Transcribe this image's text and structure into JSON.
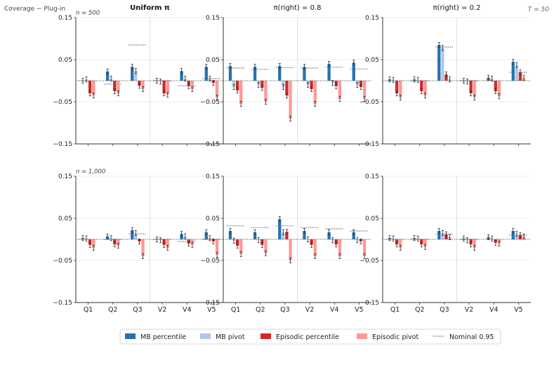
{
  "figure": {
    "corner_label": "Coverage − Plug-in",
    "t_label": "T = 50"
  },
  "legend": {
    "items": [
      {
        "label": "MB percentile",
        "color": "#2572b2",
        "kind": "box"
      },
      {
        "label": "MB pivot",
        "color": "#aec7e8",
        "kind": "box"
      },
      {
        "label": "Episodic percentile",
        "color": "#d62728",
        "kind": "box"
      },
      {
        "label": "Episodic pivot",
        "color": "#ff9896",
        "kind": "box"
      },
      {
        "label": "Nominal 0.95",
        "color": "#333333",
        "kind": "dotted"
      }
    ]
  },
  "chart_data": [
    {
      "type": "bar",
      "row_label": "n = 500",
      "title": "Uniform π",
      "title_bold": true,
      "categories": [
        "Q1",
        "Q2",
        "Q3",
        "V2",
        "V4",
        "V5"
      ],
      "ylim": [
        -0.15,
        0.15
      ],
      "yticks": [
        "0.15",
        "0.05",
        "−0.05",
        "−0.15"
      ],
      "grid": "horizontal",
      "series": [
        {
          "name": "MB percentile",
          "values": [
            0.0,
            0.022,
            0.033,
            0.0,
            0.023,
            0.033
          ]
        },
        {
          "name": "MB pivot",
          "values": [
            0.003,
            0.005,
            0.023,
            -0.002,
            0.005,
            0.005
          ]
        },
        {
          "name": "Episodic percentile",
          "values": [
            -0.03,
            -0.025,
            -0.012,
            -0.03,
            -0.013,
            -0.005
          ]
        },
        {
          "name": "Episodic pivot",
          "values": [
            -0.035,
            -0.03,
            -0.02,
            -0.033,
            -0.02,
            -0.04
          ]
        }
      ],
      "plugin_coverage": [
        0.0,
        -0.008,
        0.085,
        0.0,
        -0.012,
        0.005
      ]
    },
    {
      "type": "bar",
      "row_label": "",
      "title": "π(right) = 0.8",
      "title_bold": false,
      "categories": [
        "Q1",
        "Q2",
        "Q3",
        "V2",
        "V4",
        "V5"
      ],
      "ylim": [
        -0.15,
        0.15
      ],
      "yticks": [
        "0.15",
        "0.05",
        "−0.05",
        "−0.15"
      ],
      "grid": "horizontal",
      "series": [
        {
          "name": "MB percentile",
          "values": [
            0.035,
            0.033,
            0.035,
            0.033,
            0.04,
            0.043
          ]
        },
        {
          "name": "MB pivot",
          "values": [
            -0.015,
            -0.01,
            -0.015,
            -0.01,
            -0.005,
            -0.01
          ]
        },
        {
          "name": "Episodic percentile",
          "values": [
            -0.023,
            -0.017,
            -0.035,
            -0.02,
            -0.013,
            -0.015
          ]
        },
        {
          "name": "Episodic pivot",
          "values": [
            -0.055,
            -0.05,
            -0.09,
            -0.055,
            -0.043,
            -0.043
          ]
        }
      ],
      "plugin_coverage": [
        0.03,
        0.027,
        0.031,
        0.03,
        0.032,
        0.028
      ]
    },
    {
      "type": "bar",
      "row_label": "",
      "title": "π(right) = 0.2",
      "title_bold": false,
      "categories": [
        "Q1",
        "Q2",
        "Q3",
        "V2",
        "V4",
        "V5"
      ],
      "ylim": [
        -0.15,
        0.15
      ],
      "yticks": [
        "0.15",
        "0.05",
        "−0.05",
        "−0.15"
      ],
      "grid": "horizontal",
      "series": [
        {
          "name": "MB percentile",
          "values": [
            0.003,
            0.003,
            0.085,
            0.0,
            0.007,
            0.045
          ]
        },
        {
          "name": "MB pivot",
          "values": [
            0.002,
            0.002,
            0.078,
            -0.002,
            0.005,
            0.037
          ]
        },
        {
          "name": "Episodic percentile",
          "values": [
            -0.03,
            -0.025,
            0.015,
            -0.03,
            -0.025,
            0.02
          ]
        },
        {
          "name": "Episodic pivot",
          "values": [
            -0.04,
            -0.035,
            0.003,
            -0.04,
            -0.037,
            0.007
          ]
        }
      ],
      "plugin_coverage": [
        0.0,
        0.0,
        0.08,
        0.0,
        0.0,
        0.02
      ]
    },
    {
      "type": "bar",
      "row_label": "n = 1,000",
      "title": "",
      "title_bold": false,
      "categories": [
        "Q1",
        "Q2",
        "Q3",
        "V2",
        "V4",
        "V5"
      ],
      "ylim": [
        -0.15,
        0.15
      ],
      "yticks": [
        "0.15",
        "0.05",
        "−0.05",
        "−0.15"
      ],
      "grid": "horizontal",
      "series": [
        {
          "name": "MB percentile",
          "values": [
            0.003,
            0.007,
            0.022,
            0.0,
            0.013,
            0.017
          ]
        },
        {
          "name": "MB pivot",
          "values": [
            0.002,
            0.003,
            0.015,
            -0.002,
            0.007,
            0.003
          ]
        },
        {
          "name": "Episodic percentile",
          "values": [
            -0.013,
            -0.012,
            -0.005,
            -0.013,
            -0.01,
            -0.005
          ]
        },
        {
          "name": "Episodic pivot",
          "values": [
            -0.02,
            -0.015,
            -0.04,
            -0.02,
            -0.013,
            -0.037
          ]
        }
      ],
      "plugin_coverage": [
        0.0,
        0.0,
        0.013,
        0.0,
        -0.005,
        0.0
      ]
    },
    {
      "type": "bar",
      "row_label": "",
      "title": "",
      "title_bold": false,
      "categories": [
        "Q1",
        "Q2",
        "Q3",
        "V2",
        "V4",
        "V5"
      ],
      "ylim": [
        -0.15,
        0.15
      ],
      "yticks": [
        "0.15",
        "0.05",
        "−0.05",
        "−0.15"
      ],
      "grid": "horizontal",
      "series": [
        {
          "name": "MB percentile",
          "values": [
            0.02,
            0.017,
            0.048,
            0.02,
            0.017,
            0.017
          ]
        },
        {
          "name": "MB pivot",
          "values": [
            -0.003,
            -0.002,
            0.017,
            0.0,
            -0.002,
            -0.002
          ]
        },
        {
          "name": "Episodic percentile",
          "values": [
            -0.015,
            -0.013,
            0.018,
            -0.013,
            -0.012,
            -0.005
          ]
        },
        {
          "name": "Episodic pivot",
          "values": [
            -0.035,
            -0.033,
            -0.05,
            -0.04,
            -0.04,
            -0.04
          ]
        }
      ],
      "plugin_coverage": [
        0.032,
        0.028,
        0.032,
        0.028,
        0.025,
        0.02
      ]
    },
    {
      "type": "bar",
      "row_label": "",
      "title": "",
      "title_bold": false,
      "categories": [
        "Q1",
        "Q2",
        "Q3",
        "V2",
        "V4",
        "V5"
      ],
      "ylim": [
        -0.15,
        0.15
      ],
      "yticks": [
        "0.15",
        "0.05",
        "−0.05",
        "−0.15"
      ],
      "grid": "horizontal",
      "series": [
        {
          "name": "MB percentile",
          "values": [
            0.003,
            0.003,
            0.02,
            0.002,
            0.005,
            0.02
          ]
        },
        {
          "name": "MB pivot",
          "values": [
            0.002,
            0.002,
            0.015,
            -0.002,
            0.002,
            0.013
          ]
        },
        {
          "name": "Episodic percentile",
          "values": [
            -0.012,
            -0.012,
            0.012,
            -0.012,
            -0.008,
            0.01
          ]
        },
        {
          "name": "Episodic pivot",
          "values": [
            -0.02,
            -0.018,
            0.005,
            -0.02,
            -0.01,
            0.007
          ]
        }
      ],
      "plugin_coverage": [
        0.0,
        0.0,
        0.013,
        0.0,
        0.0,
        0.01
      ]
    }
  ]
}
